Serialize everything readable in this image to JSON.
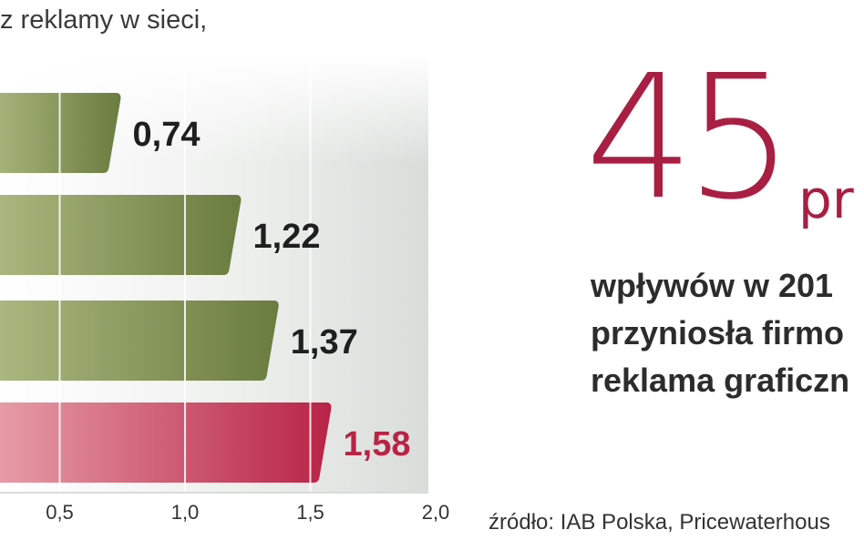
{
  "chart_data": {
    "type": "bar",
    "orientation": "horizontal",
    "subtitle": "z reklamy w sieci,",
    "values": [
      0.74,
      1.22,
      1.37,
      1.58
    ],
    "value_labels": [
      "0,74",
      "1,22",
      "1,37",
      "1,58"
    ],
    "highlight_index": 3,
    "xlim": [
      0,
      2.0
    ],
    "x_ticks": [
      0.5,
      1.0,
      1.5,
      2.0
    ],
    "x_tick_labels": [
      "0,5",
      "1,0",
      "1,5",
      "2,0"
    ],
    "grid": true,
    "colors": {
      "bar": "#6b7c40",
      "bar_light": "#aebb82",
      "highlight": "#b82346",
      "highlight_light": "#e8a2ab",
      "value_label": "#1f1f1f",
      "highlight_label": "#b82346"
    }
  },
  "callout": {
    "number": "45",
    "unit": "pr",
    "lines": [
      "wpływów w 201",
      "przyniosła firmo",
      "reklama graficzn"
    ],
    "accent_color": "#a81f43"
  },
  "source": "źródło: IAB Polska, Pricewaterhous"
}
